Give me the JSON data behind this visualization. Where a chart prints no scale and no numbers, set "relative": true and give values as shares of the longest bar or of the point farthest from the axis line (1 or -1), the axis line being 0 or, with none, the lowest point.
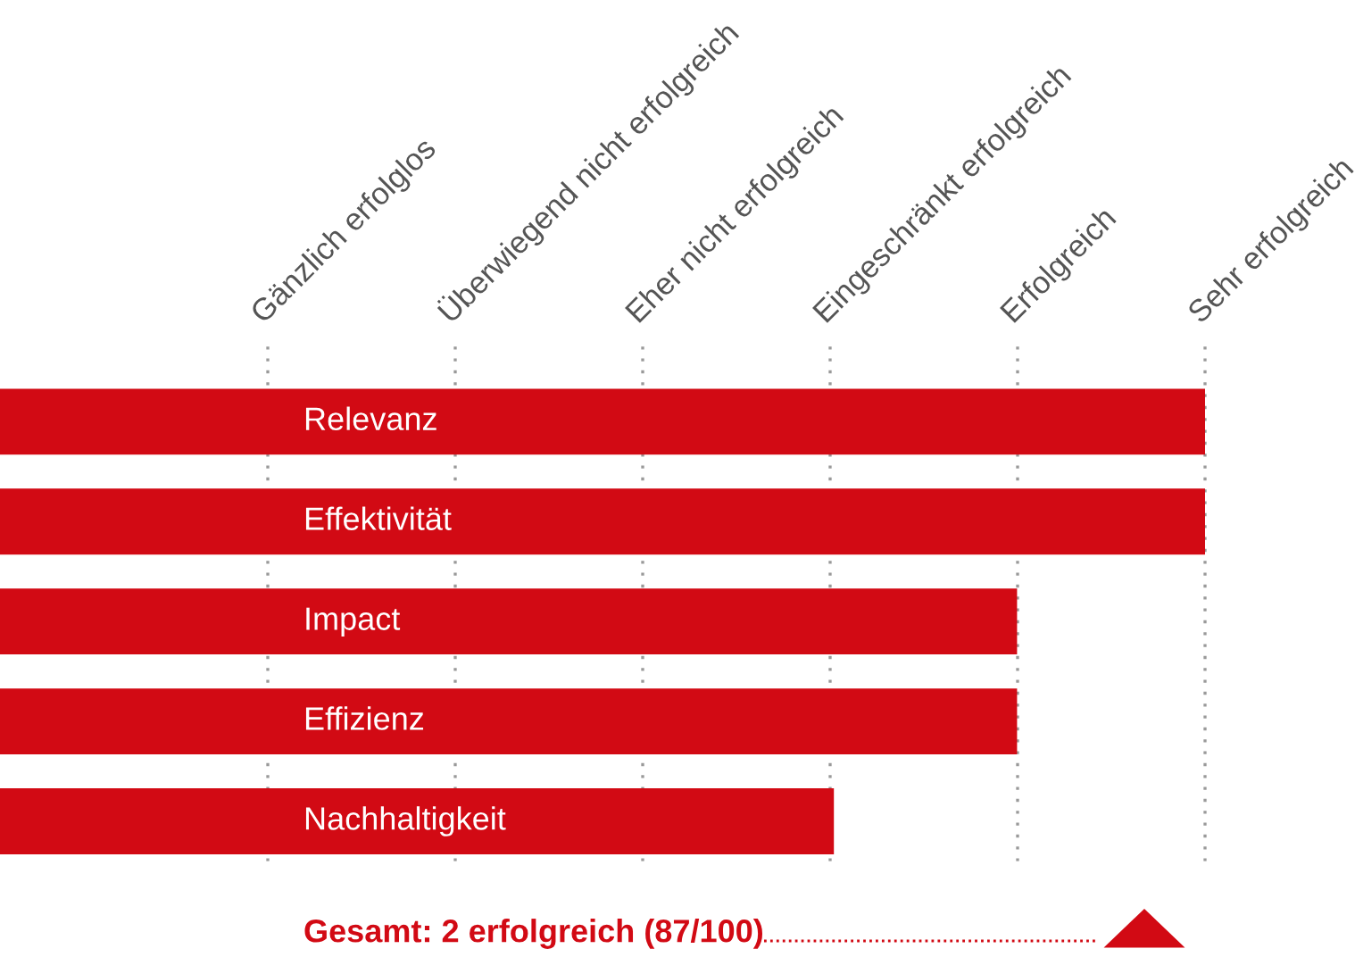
{
  "chart_data": {
    "type": "bar",
    "orientation": "horizontal",
    "relative": true,
    "categories": [
      "Relevanz",
      "Effektivität",
      "Impact",
      "Effizienz",
      "Nachhaltigkeit"
    ],
    "values": [
      1,
      1,
      0.844,
      0.844,
      0.692
    ],
    "color": "#d20a14",
    "annotations": [
      "Gesamt: 2 erfolgreich (87/100)",
      "Gänzlich erfolglos",
      "Überwiegend nicht erfolgreich",
      "Eher nicht erfolgreich",
      "Eingeschränkt erfolgreich",
      "Erfolgreich",
      "Sehr erfolgreich"
    ]
  }
}
